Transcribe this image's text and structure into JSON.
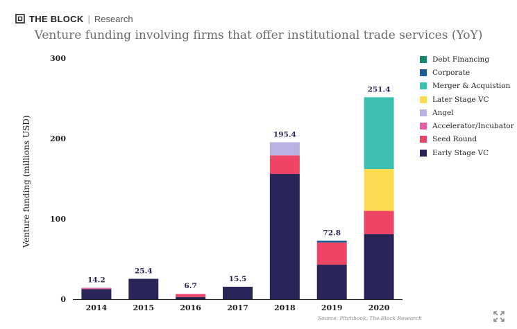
{
  "brand": {
    "name": "THE BLOCK",
    "separator": "|",
    "section": "Research"
  },
  "source": "Source: Pitchbook, The Block Research",
  "icons": {
    "logo": "cube-logo-icon",
    "expand": "expand-icon"
  },
  "chart_data": {
    "type": "bar",
    "stacked": true,
    "title": "Venture funding involving firms that offer institutional trade services (YoY)",
    "xlabel": "",
    "ylabel": "Venture funding (millions USD)",
    "ylim": [
      0,
      300
    ],
    "yticks": [
      0,
      100,
      200,
      300
    ],
    "grid": false,
    "legend": "right",
    "categories": [
      "2014",
      "2015",
      "2016",
      "2017",
      "2018",
      "2019",
      "2020"
    ],
    "totals": [
      14.2,
      25.4,
      6.7,
      15.5,
      195.4,
      72.8,
      251.4
    ],
    "total_labels": [
      "14.2",
      "25.4",
      "6.7",
      "15.5",
      "195.4",
      "72.8",
      "251.4"
    ],
    "series": [
      {
        "name": "Early Stage VC",
        "color": "#2a2559",
        "values": [
          12.7,
          25.4,
          2.7,
          15.5,
          156.0,
          43.0,
          81.0
        ]
      },
      {
        "name": "Seed Round",
        "color": "#ee4566",
        "values": [
          0.5,
          0,
          3.5,
          0,
          23.0,
          27.5,
          29.0
        ]
      },
      {
        "name": "Accelerator/Incubator",
        "color": "#e85fa8",
        "values": [
          1.0,
          0,
          0.5,
          0,
          0,
          0,
          0
        ]
      },
      {
        "name": "Angel",
        "color": "#b8b2e3",
        "values": [
          0,
          0,
          0,
          0,
          16.4,
          0,
          0
        ]
      },
      {
        "name": "Later Stage VC",
        "color": "#fcdc50",
        "values": [
          0,
          0,
          0,
          0,
          0,
          0,
          52.0
        ]
      },
      {
        "name": "Merger & Acquistion",
        "color": "#3dbfb0",
        "values": [
          0,
          0,
          0,
          0,
          0,
          0,
          89.4
        ]
      },
      {
        "name": "Corporate",
        "color": "#1a5b9a",
        "values": [
          0,
          0,
          0,
          0,
          0,
          2.3,
          0
        ]
      },
      {
        "name": "Debt Financing",
        "color": "#17876f",
        "values": [
          0,
          0,
          0,
          0,
          0,
          0,
          0
        ]
      }
    ]
  }
}
